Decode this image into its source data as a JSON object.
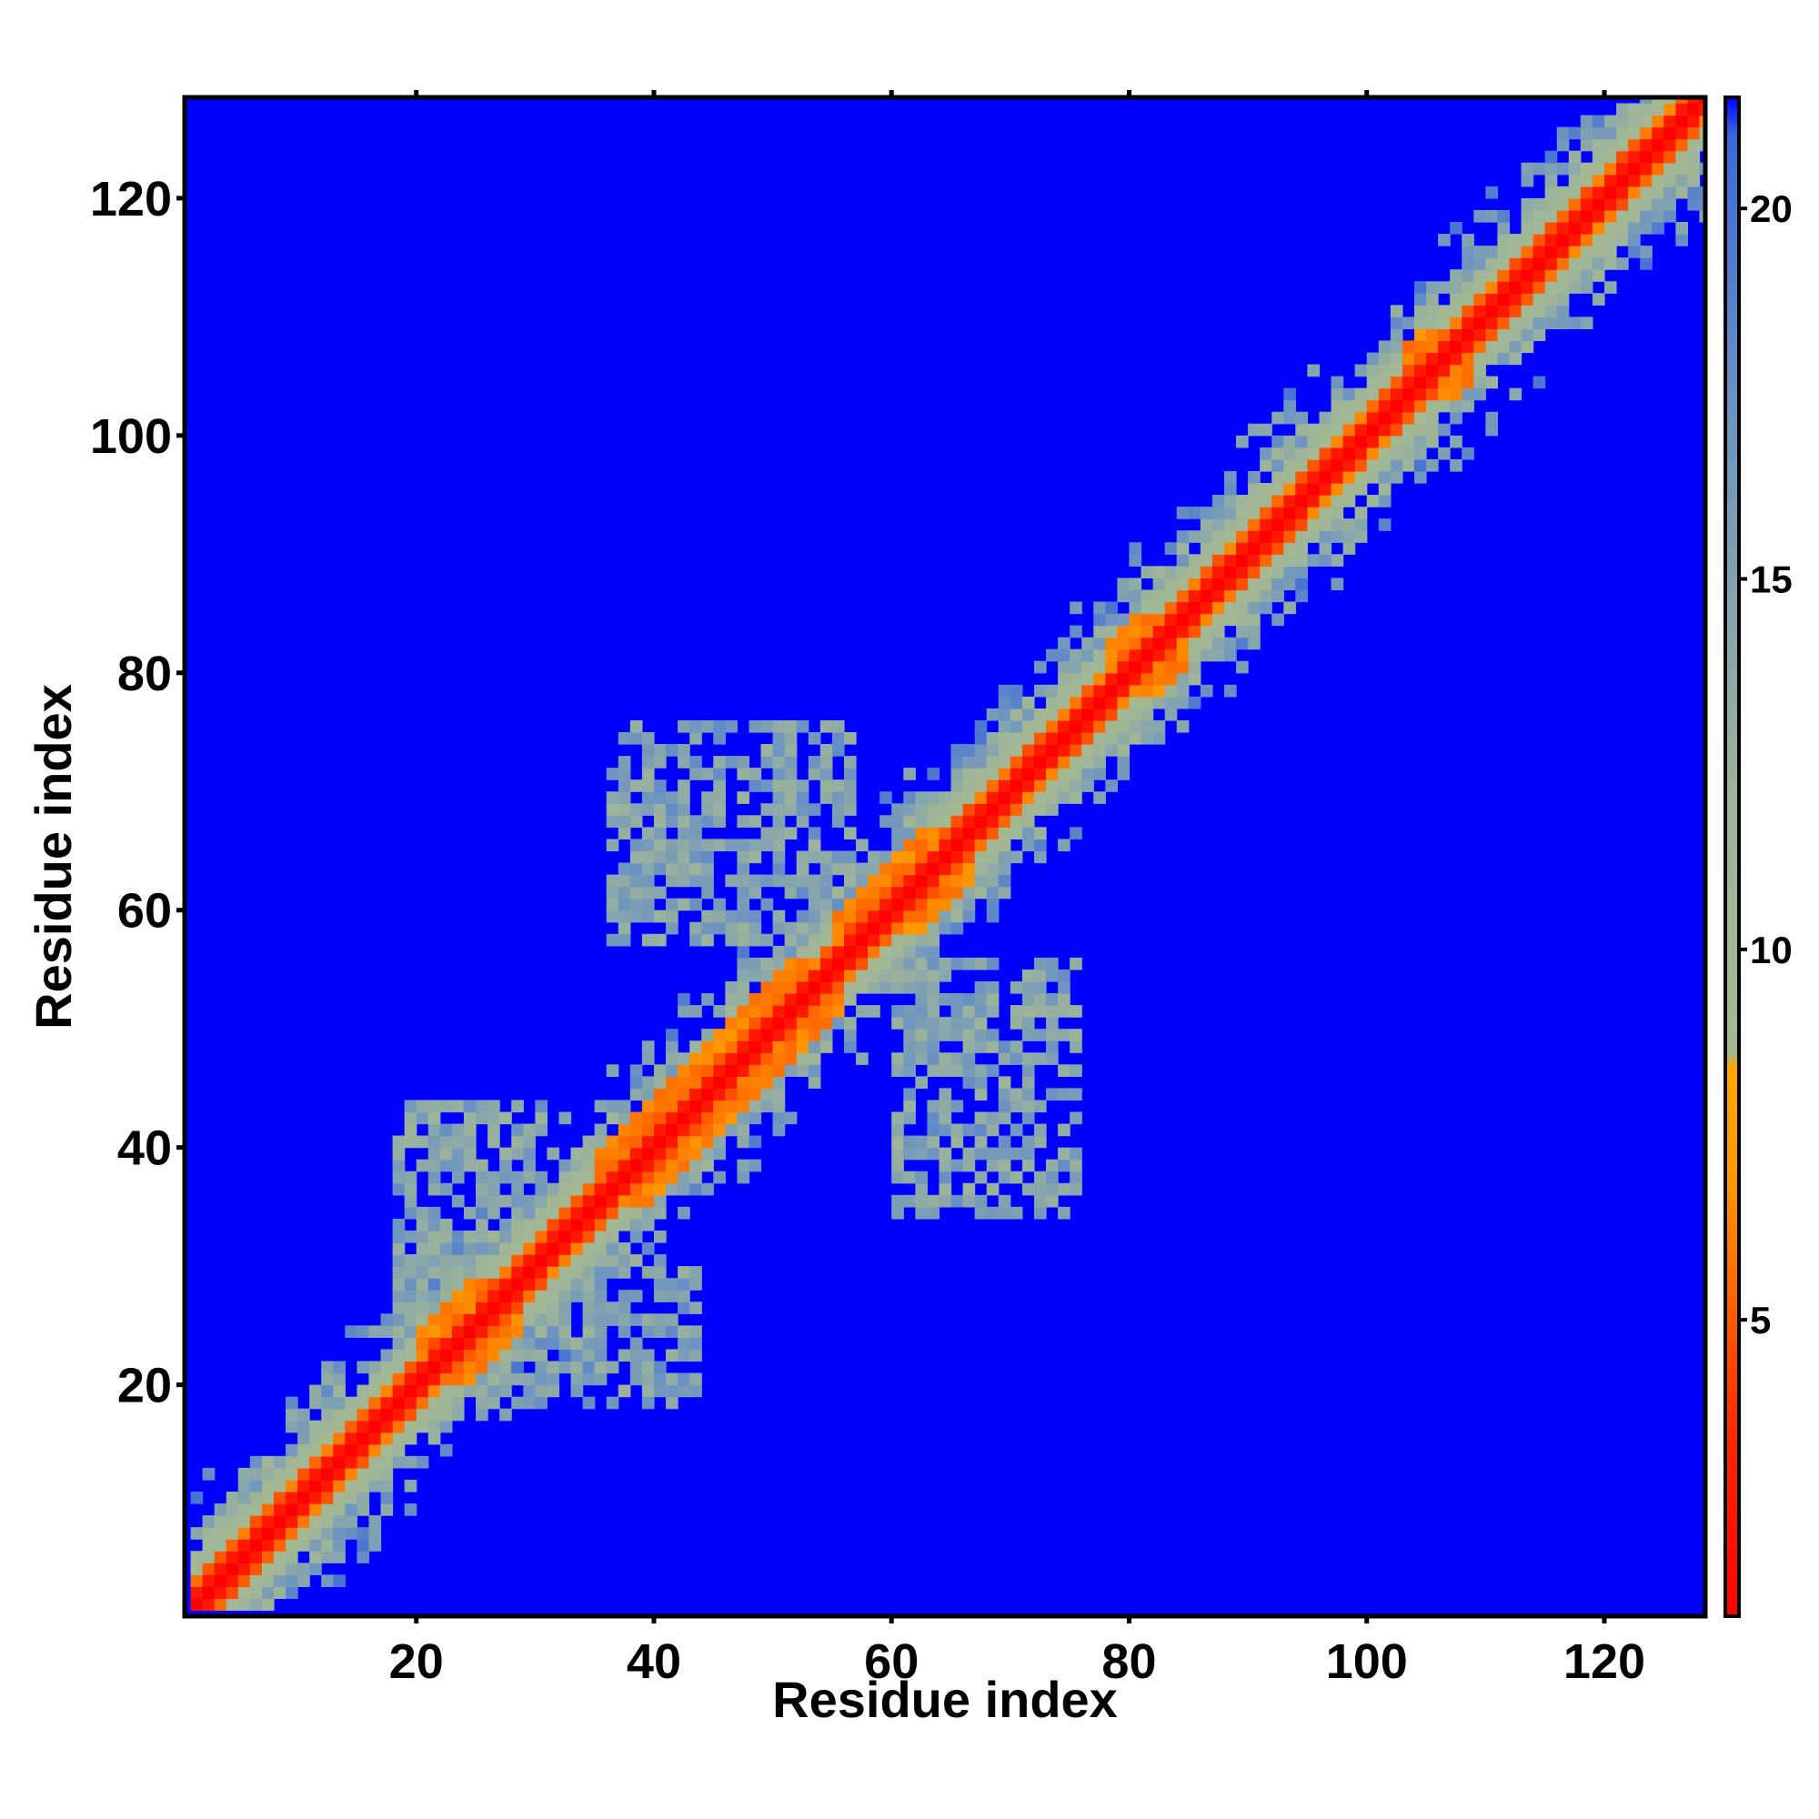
{
  "chart_data": {
    "type": "heatmap",
    "title": "",
    "xlabel": "Residue index",
    "ylabel": "Residue index",
    "n_residues": 128,
    "xlim": [
      1,
      128
    ],
    "ylim": [
      1,
      128
    ],
    "x_ticks": [
      20,
      40,
      60,
      80,
      100,
      120
    ],
    "y_ticks": [
      20,
      40,
      60,
      80,
      100,
      120
    ],
    "colorbar": {
      "range": [
        1,
        21.5
      ],
      "ticks": [
        5,
        10,
        15,
        20
      ],
      "colors": {
        "red": "#ff0000",
        "orange": "#ff8c00",
        "sage": "#9db49a",
        "steel": "#5f89c9",
        "blue": "#0000ff"
      },
      "stops": [
        {
          "value": 1,
          "color": "#ff0000"
        },
        {
          "value": 3.5,
          "color": "#ff2a00"
        },
        {
          "value": 7,
          "color": "#ff9a00"
        },
        {
          "value": 8.4,
          "color": "#ffa500"
        },
        {
          "value": 8.6,
          "color": "#a5b890"
        },
        {
          "value": 12,
          "color": "#9db49a"
        },
        {
          "value": 17,
          "color": "#6f95c0"
        },
        {
          "value": 21,
          "color": "#3b68d9"
        },
        {
          "value": 21.5,
          "color": "#0000ff"
        }
      ]
    },
    "background_value": 22,
    "description_model": {
      "diagonal_core_value": 1,
      "contact_patches": [
        {
          "x": [
            20,
            28
          ],
          "y": [
            20,
            28
          ],
          "value": 7
        },
        {
          "x": [
            35,
            55
          ],
          "y": [
            35,
            55
          ],
          "value": 7
        },
        {
          "x": [
            55,
            66
          ],
          "y": [
            58,
            66
          ],
          "value": 7
        },
        {
          "x": [
            78,
            84
          ],
          "y": [
            78,
            84
          ],
          "value": 7
        },
        {
          "x": [
            103,
            108
          ],
          "y": [
            103,
            108
          ],
          "value": 7
        },
        {
          "x": [
            36,
            56
          ],
          "y": [
            57,
            75
          ],
          "value": 12
        },
        {
          "x": [
            60,
            75
          ],
          "y": [
            34,
            55
          ],
          "value": 12
        },
        {
          "x": [
            19,
            43
          ],
          "y": [
            18,
            30
          ],
          "value": 12
        },
        {
          "x": [
            18,
            30
          ],
          "y": [
            19,
            43
          ],
          "value": 12
        }
      ]
    }
  }
}
